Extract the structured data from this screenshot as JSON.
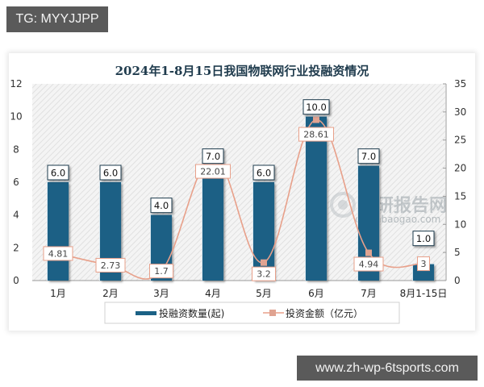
{
  "badges": {
    "top_left": "TG: MYYJJPP",
    "bottom_right": "www.zh-wp-6tsports.com"
  },
  "watermark": {
    "brand": "观研报告网",
    "domain": "chinabaogao.com"
  },
  "colors": {
    "bar": "#1b6185",
    "line": "#e8a08a",
    "marker": "#e0a391",
    "badge_bg": "#5a5a5a"
  },
  "chart_data": {
    "type": "bar+line",
    "title": "2024年1-8月15日我国物联网行业投融资情况",
    "categories": [
      "1月",
      "2月",
      "3月",
      "4月",
      "5月",
      "6月",
      "7月",
      "8月1-15日"
    ],
    "series": [
      {
        "name": "投融资数量(起)",
        "type": "bar",
        "axis": "left",
        "values": [
          6.0,
          6.0,
          4.0,
          7.0,
          6.0,
          10.0,
          7.0,
          1.0
        ],
        "labels": [
          "6.0",
          "6.0",
          "4.0",
          "7.0",
          "6.0",
          "10.0",
          "7.0",
          "1.0"
        ]
      },
      {
        "name": "投资金额（亿元）",
        "type": "line",
        "axis": "right",
        "values": [
          4.81,
          2.73,
          1.7,
          22.01,
          3.2,
          28.61,
          4.94,
          3
        ],
        "labels": [
          "4.81",
          "2.73",
          "1.7",
          "22.01",
          "3.2",
          "28.61",
          "4.94",
          "3"
        ]
      }
    ],
    "left_axis": {
      "min": 0,
      "max": 12,
      "ticks": [
        "0",
        "2",
        "4",
        "6",
        "8",
        "10",
        "12"
      ]
    },
    "right_axis": {
      "min": 0,
      "max": 35,
      "ticks": [
        "0",
        "5",
        "10",
        "15",
        "20",
        "25",
        "30",
        "35"
      ]
    },
    "xlabel": "",
    "ylabel": "",
    "grid": false,
    "legend_position": "bottom",
    "legend": [
      "投融资数量(起)",
      "投资金额（亿元）"
    ]
  }
}
